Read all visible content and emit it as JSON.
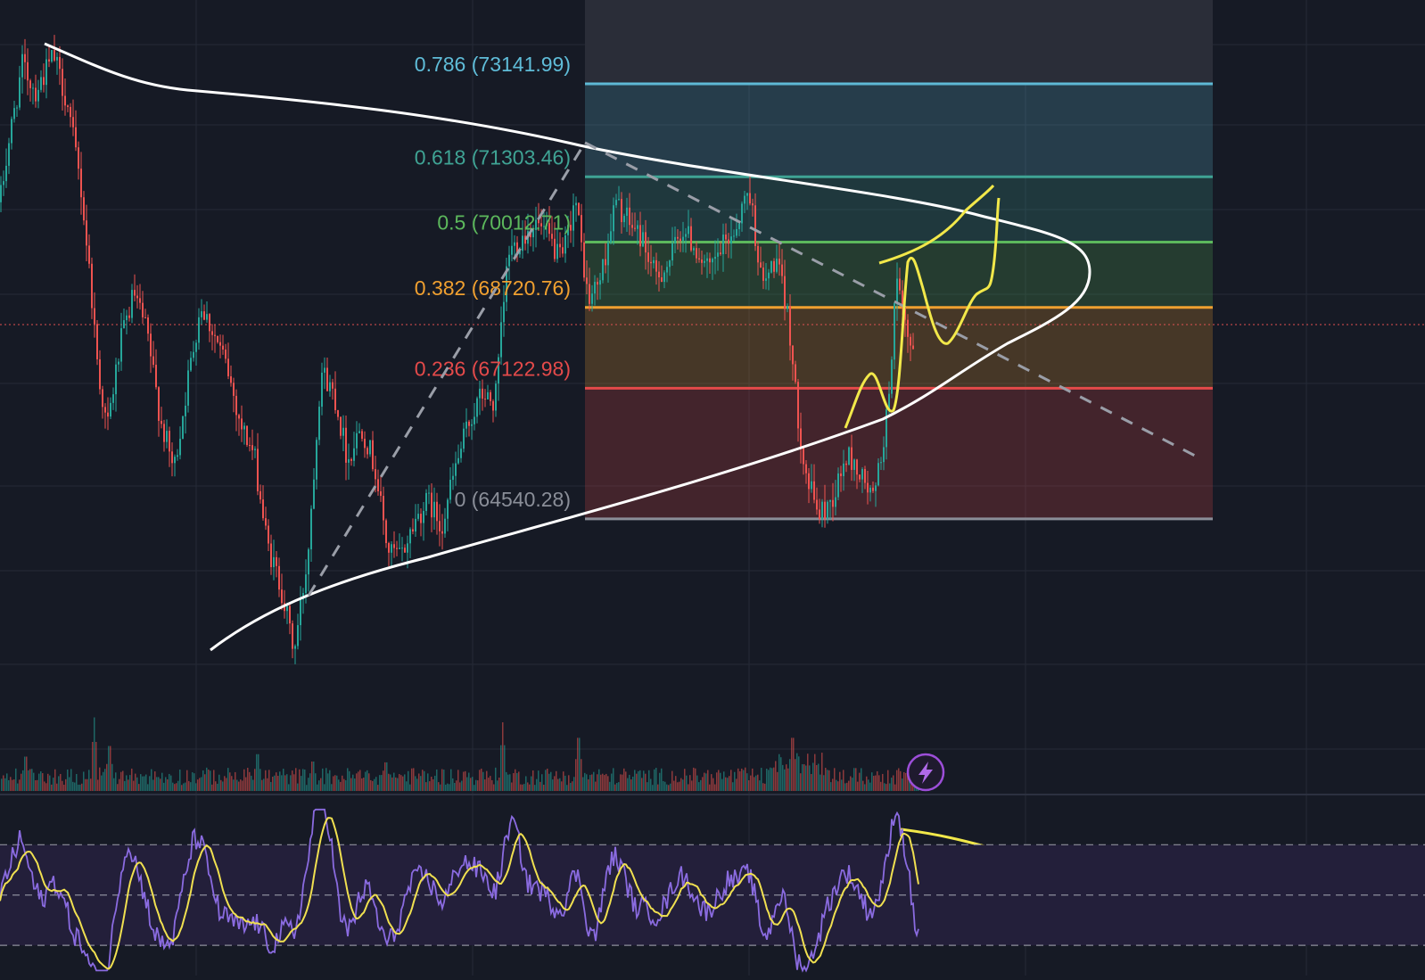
{
  "colors": {
    "background": "#161a25",
    "grid": "#252a36",
    "candle_up": "#26a69a",
    "candle_down": "#ef5350",
    "fib_0786": "#5fbcd8",
    "fib_0618": "#3fa394",
    "fib_05": "#5cb85c",
    "fib_0382": "#f0a030",
    "fib_0236": "#e44a4a",
    "fib_0": "#8a8e98",
    "drawing_white": "#ffffff",
    "drawing_yellow": "#f2e84a",
    "rsi_line": "#8a6be0",
    "rsi_ma": "#f0e050",
    "rsi_band": "#231f3a",
    "current_price_line": "#e05050",
    "alert_icon": "#9c4ed8"
  },
  "icons": {
    "alert": "lightning-bolt-icon"
  },
  "chart_data": {
    "type": "candlestick",
    "price_range": [
      61400,
      74800
    ],
    "current_price": 67350,
    "fib_retracement": {
      "levels": [
        {
          "ratio": 0.786,
          "label": "0.786 (73141.99)",
          "price": 73141.99,
          "color": "#5fbcd8"
        },
        {
          "ratio": 0.618,
          "label": "0.618 (71303.46)",
          "price": 71303.46,
          "color": "#3fa394"
        },
        {
          "ratio": 0.5,
          "label": "0.5 (70012.71)",
          "price": 70012.71,
          "color": "#5cb85c"
        },
        {
          "ratio": 0.382,
          "label": "0.382 (68720.76)",
          "price": 68720.76,
          "color": "#f0a030"
        },
        {
          "ratio": 0.236,
          "label": "0.236 (67122.98)",
          "price": 67122.98,
          "color": "#e44a4a"
        },
        {
          "ratio": 0,
          "label": "0 (64540.28)",
          "price": 64540.28,
          "color": "#8a8e98"
        }
      ]
    },
    "price_path_anchors": [
      [
        0,
        70800
      ],
      [
        10,
        72000
      ],
      [
        25,
        73500
      ],
      [
        40,
        73000
      ],
      [
        60,
        73700
      ],
      [
        75,
        72800
      ],
      [
        90,
        71200
      ],
      [
        100,
        69500
      ],
      [
        110,
        67500
      ],
      [
        120,
        66300
      ],
      [
        135,
        68000
      ],
      [
        150,
        69000
      ],
      [
        165,
        68200
      ],
      [
        180,
        66500
      ],
      [
        195,
        65500
      ],
      [
        210,
        67200
      ],
      [
        225,
        68800
      ],
      [
        240,
        68200
      ],
      [
        255,
        67500
      ],
      [
        270,
        66400
      ],
      [
        285,
        65800
      ],
      [
        300,
        64000
      ],
      [
        315,
        63200
      ],
      [
        330,
        61900
      ],
      [
        345,
        63800
      ],
      [
        360,
        67500
      ],
      [
        375,
        67000
      ],
      [
        390,
        65700
      ],
      [
        405,
        66400
      ],
      [
        420,
        65600
      ],
      [
        435,
        63900
      ],
      [
        450,
        63800
      ],
      [
        465,
        64500
      ],
      [
        480,
        64900
      ],
      [
        495,
        64400
      ],
      [
        510,
        65500
      ],
      [
        525,
        66400
      ],
      [
        540,
        67000
      ],
      [
        555,
        66800
      ],
      [
        570,
        69800
      ],
      [
        585,
        70100
      ],
      [
        600,
        70400
      ],
      [
        615,
        70100
      ],
      [
        630,
        69600
      ],
      [
        645,
        70900
      ],
      [
        660,
        68800
      ],
      [
        675,
        69400
      ],
      [
        690,
        70800
      ],
      [
        705,
        70400
      ],
      [
        720,
        70100
      ],
      [
        735,
        69300
      ],
      [
        750,
        69600
      ],
      [
        765,
        70300
      ],
      [
        780,
        69900
      ],
      [
        795,
        69400
      ],
      [
        810,
        69900
      ],
      [
        825,
        70300
      ],
      [
        840,
        71100
      ],
      [
        855,
        69100
      ],
      [
        870,
        69700
      ],
      [
        885,
        68400
      ],
      [
        893,
        66800
      ],
      [
        905,
        65300
      ],
      [
        920,
        64600
      ],
      [
        935,
        65000
      ],
      [
        950,
        65800
      ],
      [
        965,
        65400
      ],
      [
        980,
        64900
      ],
      [
        995,
        66600
      ],
      [
        1005,
        69200
      ],
      [
        1015,
        68300
      ],
      [
        1025,
        67600
      ]
    ],
    "volume": {
      "spikes": [
        [
          28,
          0.42
        ],
        [
          105,
          0.75
        ],
        [
          122,
          0.55
        ],
        [
          288,
          0.45
        ],
        [
          350,
          0.36
        ],
        [
          432,
          0.35
        ],
        [
          563,
          0.7
        ],
        [
          648,
          0.65
        ],
        [
          888,
          0.65
        ],
        [
          905,
          0.38
        ]
      ]
    },
    "rsi": {
      "band_levels": [
        70,
        50,
        30
      ],
      "range": [
        18,
        85
      ]
    },
    "annotations": [
      {
        "type": "curve",
        "color": "white",
        "desc": "upper converging trend curve"
      },
      {
        "type": "curve",
        "color": "white",
        "desc": "lower converging curve wrapping to right apex"
      },
      {
        "type": "dashed-line",
        "color": "gray",
        "desc": "rising dashed trendline"
      },
      {
        "type": "dashed-line",
        "color": "gray",
        "desc": "descending dashed trendline"
      },
      {
        "type": "curve",
        "color": "yellow",
        "desc": "projected price path"
      },
      {
        "type": "curve",
        "color": "yellow",
        "desc": "projected RSI path"
      }
    ]
  }
}
